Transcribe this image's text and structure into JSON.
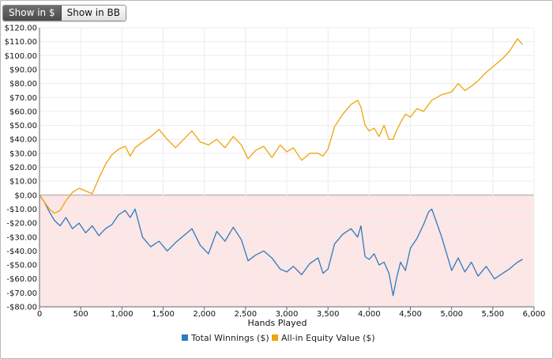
{
  "toggle": {
    "show_dollars": "Show in $",
    "show_bb": "Show in BB",
    "active": "show_dollars"
  },
  "chart_data": {
    "type": "line",
    "xlabel": "Hands Played",
    "ylabel": "",
    "title": "",
    "xlim": [
      0,
      6000
    ],
    "ylim": [
      -80,
      120
    ],
    "x_ticks": [
      0,
      500,
      1000,
      1500,
      2000,
      2500,
      3000,
      3500,
      4000,
      4500,
      5000,
      5500,
      6000
    ],
    "x_tick_labels": [
      "0",
      "500",
      "1,000",
      "1,500",
      "2,000",
      "2,500",
      "3,000",
      "3,500",
      "4,000",
      "4,500",
      "5,000",
      "5,500",
      "6,000"
    ],
    "y_ticks": [
      120,
      110,
      100,
      90,
      80,
      70,
      60,
      50,
      40,
      30,
      20,
      10,
      0,
      -10,
      -20,
      -30,
      -40,
      -50,
      -60,
      -70,
      -80
    ],
    "y_tick_labels": [
      "$120.00",
      "$110.00",
      "$100.00",
      "$90.00",
      "$80.00",
      "$70.00",
      "$60.00",
      "$50.00",
      "$40.00",
      "$30.00",
      "$20.00",
      "$10.00",
      "$0.00",
      "-$10.00",
      "-$20.00",
      "-$30.00",
      "-$40.00",
      "-$50.00",
      "-$60.00",
      "-$70.00",
      "-$80.00"
    ],
    "negative_region_color": "#fde6e6",
    "grid": true,
    "legend_position": "bottom-center",
    "series": [
      {
        "name": "Total Winnings ($)",
        "color": "#2f7bbf",
        "x": [
          0,
          60,
          120,
          180,
          250,
          320,
          400,
          480,
          560,
          640,
          720,
          800,
          880,
          960,
          1040,
          1100,
          1160,
          1250,
          1350,
          1450,
          1550,
          1650,
          1750,
          1850,
          1950,
          2050,
          2150,
          2250,
          2350,
          2450,
          2530,
          2620,
          2720,
          2820,
          2920,
          3000,
          3080,
          3180,
          3280,
          3380,
          3440,
          3500,
          3580,
          3680,
          3780,
          3860,
          3900,
          3950,
          4000,
          4060,
          4120,
          4180,
          4240,
          4290,
          4330,
          4380,
          4440,
          4500,
          4580,
          4660,
          4720,
          4760,
          4820,
          4880,
          4940,
          5000,
          5080,
          5160,
          5240,
          5320,
          5420,
          5520,
          5620,
          5700,
          5800,
          5860
        ],
        "y": [
          0,
          -5,
          -12,
          -18,
          -22,
          -16,
          -24,
          -20,
          -27,
          -22,
          -29,
          -24,
          -21,
          -14,
          -11,
          -16,
          -10,
          -30,
          -37,
          -33,
          -40,
          -34,
          -29,
          -24,
          -36,
          -42,
          -26,
          -33,
          -23,
          -32,
          -47,
          -43,
          -40,
          -45,
          -53,
          -55,
          -51,
          -57,
          -49,
          -45,
          -56,
          -53,
          -35,
          -28,
          -24,
          -30,
          -22,
          -44,
          -46,
          -42,
          -50,
          -48,
          -56,
          -72,
          -60,
          -48,
          -54,
          -38,
          -31,
          -21,
          -12,
          -10,
          -20,
          -30,
          -42,
          -54,
          -45,
          -55,
          -48,
          -58,
          -51,
          -60,
          -56,
          -53,
          -48,
          -46
        ]
      },
      {
        "name": "All-in Equity Value ($)",
        "color": "#f0a30a",
        "x": [
          0,
          60,
          120,
          180,
          250,
          320,
          400,
          480,
          560,
          640,
          720,
          800,
          880,
          960,
          1040,
          1100,
          1160,
          1250,
          1350,
          1450,
          1550,
          1650,
          1750,
          1850,
          1950,
          2050,
          2150,
          2250,
          2350,
          2450,
          2530,
          2620,
          2720,
          2820,
          2920,
          3000,
          3080,
          3180,
          3280,
          3380,
          3440,
          3500,
          3580,
          3680,
          3780,
          3860,
          3900,
          3950,
          4000,
          4060,
          4120,
          4180,
          4240,
          4290,
          4330,
          4380,
          4440,
          4500,
          4580,
          4660,
          4720,
          4760,
          4820,
          4880,
          4940,
          5000,
          5080,
          5160,
          5240,
          5320,
          5420,
          5520,
          5620,
          5700,
          5800,
          5860
        ],
        "y": [
          0,
          -5,
          -10,
          -13,
          -11,
          -4,
          2,
          5,
          3,
          1,
          12,
          22,
          29,
          33,
          35,
          28,
          34,
          38,
          42,
          47,
          40,
          34,
          40,
          46,
          38,
          36,
          40,
          34,
          42,
          36,
          26,
          32,
          35,
          27,
          36,
          31,
          34,
          25,
          30,
          30,
          28,
          33,
          49,
          58,
          65,
          68,
          63,
          50,
          46,
          48,
          42,
          50,
          40,
          40,
          46,
          52,
          58,
          56,
          62,
          60,
          65,
          68,
          70,
          72,
          73,
          74,
          80,
          75,
          78,
          82,
          88,
          93,
          98,
          103,
          112,
          108
        ]
      }
    ]
  }
}
